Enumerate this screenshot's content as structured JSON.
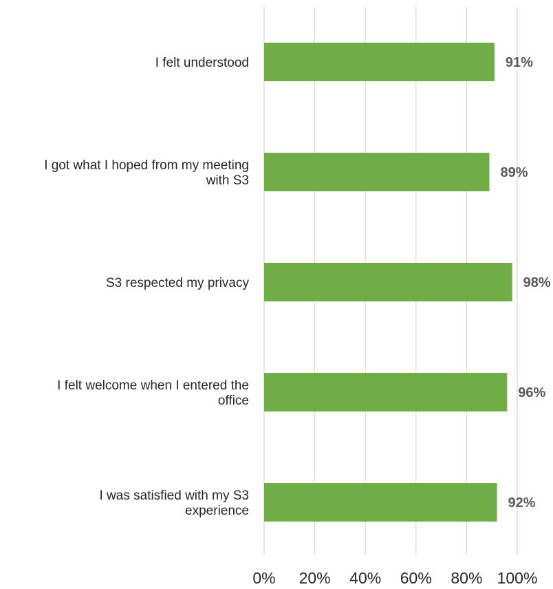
{
  "chart_data": {
    "type": "bar",
    "orientation": "horizontal",
    "categories": [
      "I felt understood",
      "I got what I hoped from my meeting with S3",
      "S3 respected my privacy",
      "I felt welcome when I entered the office",
      "I was satisfied with my S3 experience"
    ],
    "category_lines": [
      [
        "I felt understood"
      ],
      [
        "I got what I hoped from my meeting",
        "with S3"
      ],
      [
        "S3 respected my privacy"
      ],
      [
        "I felt welcome when I entered the",
        "office"
      ],
      [
        "I was satisfied with my S3",
        "experience"
      ]
    ],
    "values": [
      91,
      89,
      98,
      96,
      92
    ],
    "data_labels": [
      "91%",
      "89%",
      "98%",
      "96%",
      "92%"
    ],
    "xlim": [
      0,
      100
    ],
    "x_ticks": [
      0,
      20,
      40,
      60,
      80,
      100
    ],
    "x_tick_labels": [
      "0%",
      "20%",
      "40%",
      "60%",
      "80%",
      "100%"
    ],
    "grid": true,
    "legend": "none",
    "title": "",
    "xlabel": "",
    "ylabel": "",
    "colors": {
      "bar": "#70AD47",
      "grid": "#D9D9D9",
      "category_text": "#262626",
      "data_label_text": "#595959",
      "tick_text": "#262626"
    }
  }
}
